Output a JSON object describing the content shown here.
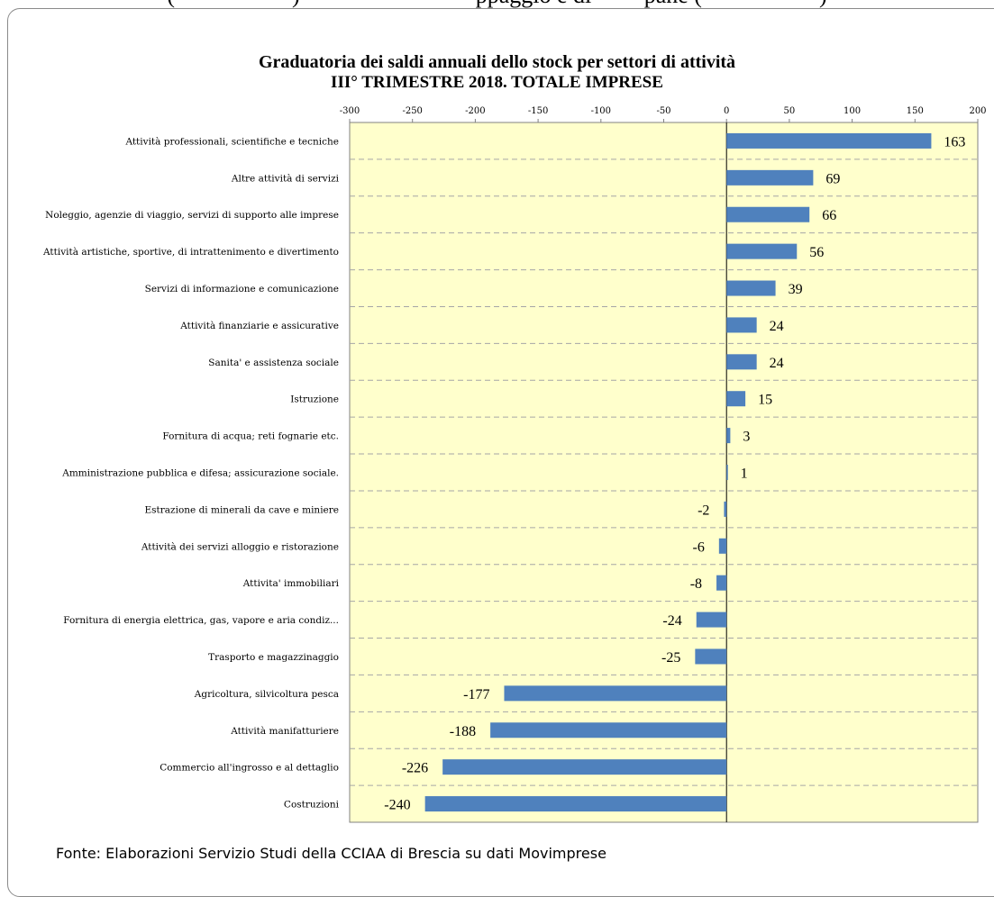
{
  "header_fragment": "(**********) ********** ****ppaggio e di ****pane (**********)",
  "source_note": "Fonte: Elaborazioni Servizio Studi della CCIAA di Brescia su dati Movimprese",
  "colors": {
    "bar": "#4f81bd",
    "plot_background": "#ffffcc",
    "gridline": "#a6a6a6"
  },
  "chart_data": {
    "type": "bar",
    "orientation": "horizontal",
    "title": "Graduatoria dei saldi annuali dello stock per settori di attività",
    "subtitle": "III° TRIMESTRE  2018. TOTALE  IMPRESE",
    "xlim": [
      -300,
      200
    ],
    "xticks": [
      -300,
      -250,
      -200,
      -150,
      -100,
      -50,
      0,
      50,
      100,
      150,
      200
    ],
    "xtick_labels": [
      "-300",
      "-250",
      "-200",
      "-150",
      "-100",
      "-50",
      "0",
      "50",
      "100",
      "150",
      "200"
    ],
    "xaxis_position": "top",
    "grid": "horizontal dashed",
    "legend": "none",
    "categories": [
      "Attività professionali, scientifiche e tecniche",
      "Altre attività di servizi",
      "Noleggio, agenzie di viaggio, servizi di supporto alle imprese",
      "Attività artistiche, sportive, di intrattenimento e divertimento",
      "Servizi di informazione e comunicazione",
      "Attività finanziarie e assicurative",
      "Sanita' e assistenza sociale",
      "Istruzione",
      "Fornitura di acqua; reti fognarie etc.",
      "Amministrazione pubblica e difesa; assicurazione sociale.",
      "Estrazione di minerali da cave e miniere",
      "Attività dei servizi alloggio e ristorazione",
      "Attivita' immobiliari",
      "Fornitura di energia elettrica, gas, vapore e aria condiz...",
      "Trasporto e magazzinaggio",
      "Agricoltura, silvicoltura pesca",
      "Attività manifatturiere",
      "Commercio all'ingrosso e al dettaglio",
      "Costruzioni"
    ],
    "values": [
      163,
      69,
      66,
      56,
      39,
      24,
      24,
      15,
      3,
      1,
      -2,
      -6,
      -8,
      -24,
      -25,
      -177,
      -188,
      -226,
      -240
    ],
    "value_labels": [
      "163",
      "69",
      "66",
      "56",
      "39",
      "24",
      "24",
      "15",
      "3",
      "1",
      "-2",
      "-6",
      "-8",
      "-24",
      "-25",
      "-177",
      "-188",
      "-226",
      "-240"
    ]
  }
}
